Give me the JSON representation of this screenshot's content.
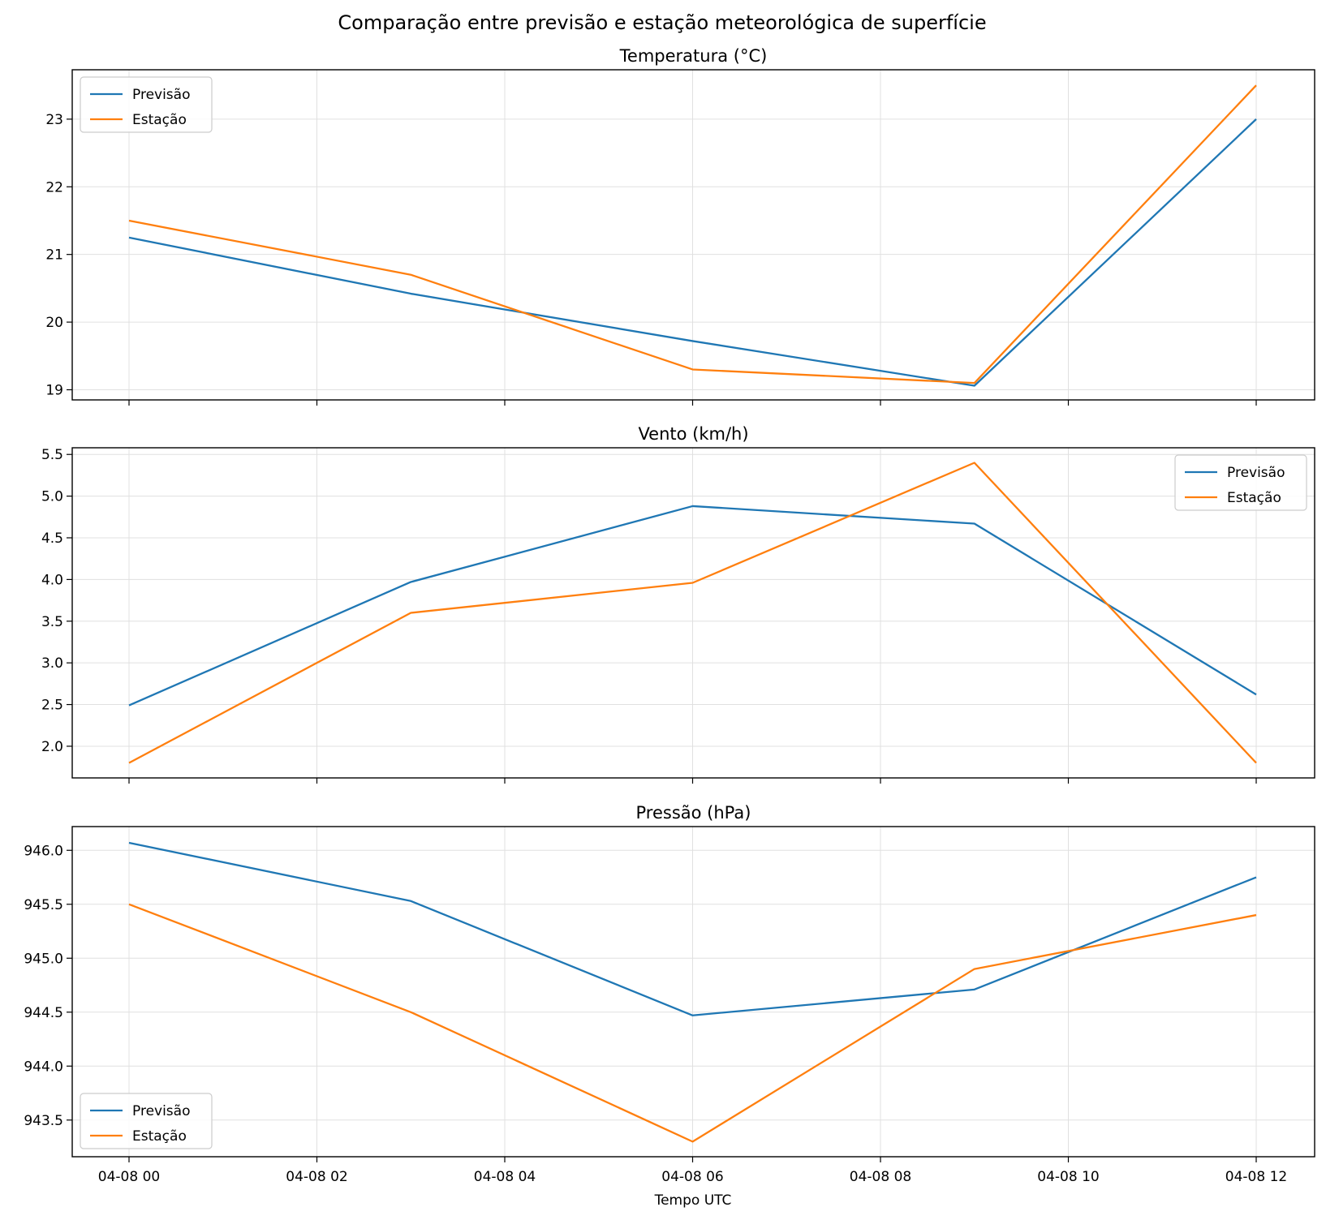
{
  "figure": {
    "suptitle": "Comparação entre previsão e estação meteorológica de superfície",
    "xlabel": "Tempo UTC",
    "x_tick_labels": [
      "04-08 00",
      "04-08 02",
      "04-08 04",
      "04-08 06",
      "04-08 08",
      "04-08 10",
      "04-08 12"
    ]
  },
  "colors": {
    "forecast": "#1f77b4",
    "station": "#ff7f0e",
    "grid": "#e0e0e0"
  },
  "chart_data": [
    {
      "type": "line",
      "title": "Temperatura (°C)",
      "x": [
        "04-08 00",
        "04-08 03",
        "04-08 06",
        "04-08 09",
        "04-08 12"
      ],
      "series": [
        {
          "name": "Previsão",
          "values": [
            21.25,
            20.42,
            19.72,
            19.06,
            23.0
          ]
        },
        {
          "name": "Estação",
          "values": [
            21.5,
            20.7,
            19.3,
            19.1,
            23.5
          ]
        }
      ],
      "ylim": [
        18.85,
        23.73
      ],
      "yticks": [
        19,
        20,
        21,
        22,
        23
      ],
      "ytick_labels": [
        "19",
        "20",
        "21",
        "22",
        "23"
      ],
      "legend": "upper left",
      "grid": true
    },
    {
      "type": "line",
      "title": "Vento (km/h)",
      "x": [
        "04-08 00",
        "04-08 03",
        "04-08 06",
        "04-08 09",
        "04-08 12"
      ],
      "series": [
        {
          "name": "Previsão",
          "values": [
            2.49,
            3.97,
            4.88,
            4.67,
            2.62
          ]
        },
        {
          "name": "Estação",
          "values": [
            1.8,
            3.6,
            3.96,
            5.4,
            1.8
          ]
        }
      ],
      "ylim": [
        1.62,
        5.58
      ],
      "yticks": [
        2.0,
        2.5,
        3.0,
        3.5,
        4.0,
        4.5,
        5.0,
        5.5
      ],
      "ytick_labels": [
        "2.0",
        "2.5",
        "3.0",
        "3.5",
        "4.0",
        "4.5",
        "5.0",
        "5.5"
      ],
      "legend": "upper right",
      "grid": true
    },
    {
      "type": "line",
      "title": "Pressão (hPa)",
      "x": [
        "04-08 00",
        "04-08 03",
        "04-08 06",
        "04-08 09",
        "04-08 12"
      ],
      "series": [
        {
          "name": "Previsão",
          "values": [
            946.07,
            945.53,
            944.47,
            944.71,
            945.75
          ]
        },
        {
          "name": "Estação",
          "values": [
            945.5,
            944.5,
            943.3,
            944.9,
            945.4
          ]
        }
      ],
      "ylim": [
        943.16,
        946.22
      ],
      "yticks": [
        943.5,
        944.0,
        944.5,
        945.0,
        945.5,
        946.0
      ],
      "ytick_labels": [
        "943.5",
        "944.0",
        "944.5",
        "945.0",
        "945.5",
        "946.0"
      ],
      "legend": "lower left",
      "grid": true
    }
  ]
}
